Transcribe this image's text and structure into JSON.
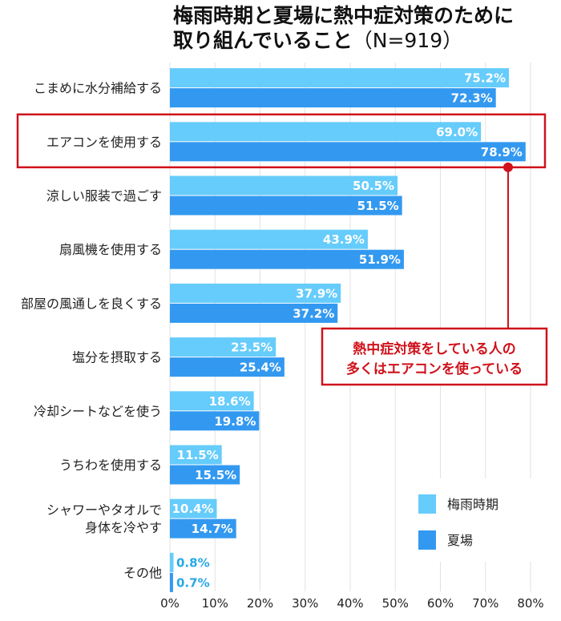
{
  "chart_data": {
    "type": "bar",
    "orientation": "horizontal",
    "title_line1": "梅雨時期と夏場に熱中症対策のために",
    "title_line2": "取り組んでいること",
    "title_n": "（N=919）",
    "categories": [
      [
        "こまめに水分補給する"
      ],
      [
        "エアコンを使用する"
      ],
      [
        "涼しい服装で過ごす"
      ],
      [
        "扇風機を使用する"
      ],
      [
        "部屋の風通しを良くする"
      ],
      [
        "塩分を摂取する"
      ],
      [
        "冷却シートなどを使う"
      ],
      [
        "うちわを使用する"
      ],
      [
        "シャワーやタオルで",
        "身体を冷やす"
      ],
      [
        "その他"
      ]
    ],
    "series": [
      {
        "name": "梅雨時期",
        "color": "#66ccfb",
        "values": [
          75.2,
          69.0,
          50.5,
          43.9,
          37.9,
          23.5,
          18.6,
          11.5,
          10.4,
          0.8
        ]
      },
      {
        "name": "夏場",
        "color": "#3399f0",
        "values": [
          72.3,
          78.9,
          51.5,
          51.9,
          37.2,
          25.4,
          19.8,
          15.5,
          14.7,
          0.7
        ]
      }
    ],
    "xlim": [
      0,
      80
    ],
    "xticks": [
      "0%",
      "10%",
      "20%",
      "30%",
      "40%",
      "50%",
      "60%",
      "70%",
      "80%"
    ],
    "value_suffix": "%",
    "grid": true,
    "legend_position": "bottom-right",
    "annotation": {
      "lines": [
        "熱中症対策をしている人の",
        "多くはエアコンを使っている"
      ],
      "color": "#d0121b",
      "highlight_category_index": 1
    }
  }
}
